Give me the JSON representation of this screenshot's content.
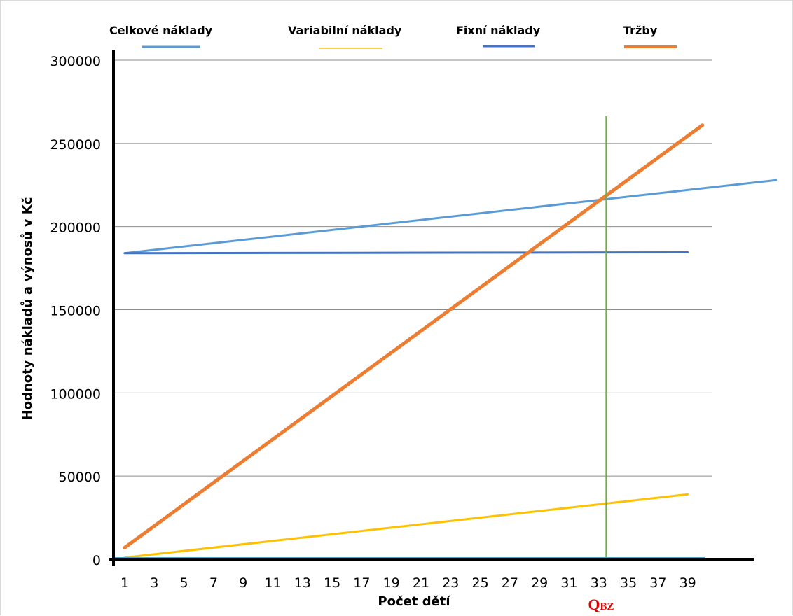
{
  "chart_data": {
    "type": "line",
    "title": "",
    "xlabel": "Počet dětí",
    "ylabel": "Hodnoty nákladů a výnosů v Kč",
    "x_ticks": [
      "1",
      "3",
      "5",
      "7",
      "9",
      "11",
      "13",
      "15",
      "17",
      "19",
      "21",
      "23",
      "25",
      "27",
      "29",
      "31",
      "33",
      "35",
      "37",
      "39"
    ],
    "y_ticks": [
      "0",
      "50000",
      "100000",
      "150000",
      "200000",
      "250000",
      "300000"
    ],
    "ylim": [
      0,
      300000
    ],
    "xlim": [
      1,
      40
    ],
    "grid": "horizontal",
    "legend_position": "top",
    "series": [
      {
        "name": "Celkové náklady",
        "color": "#5b9bd5",
        "points": [
          [
            1,
            184000
          ],
          [
            40,
            223000
          ]
        ]
      },
      {
        "name": "Variabilní náklady",
        "color": "#ffc000",
        "points": [
          [
            1,
            1000
          ],
          [
            39,
            39000
          ]
        ]
      },
      {
        "name": "Fixní náklady",
        "color": "#4472c4",
        "points": [
          [
            1,
            184000
          ],
          [
            39,
            184500
          ]
        ]
      },
      {
        "name": "Tržby",
        "color": "#ed7d31",
        "points": [
          [
            1,
            7000
          ],
          [
            40,
            261000
          ]
        ]
      }
    ],
    "annotations": [
      {
        "label": "Q",
        "subscript": "BZ",
        "x": 33.5,
        "color": "#70ad47"
      }
    ]
  }
}
